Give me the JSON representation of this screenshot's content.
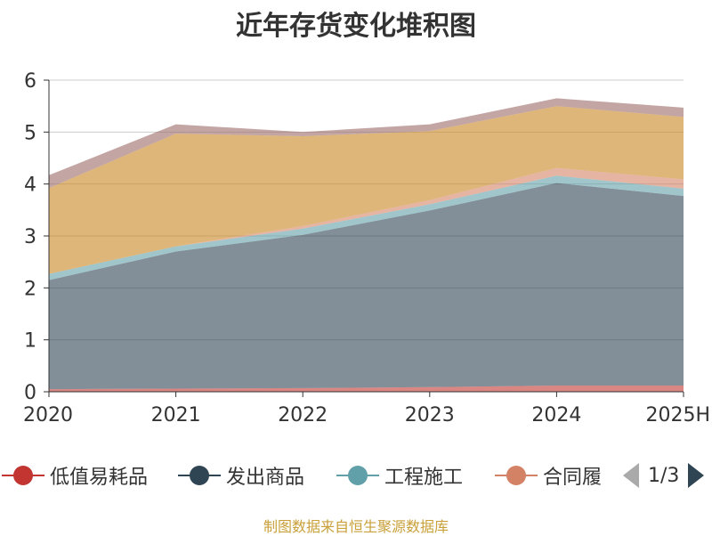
{
  "chart_data": {
    "type": "area",
    "stacked": true,
    "title": "近年存货变化堆积图",
    "categories": [
      "2020",
      "2021",
      "2022",
      "2023",
      "2024",
      "2025H"
    ],
    "ylim": [
      0,
      6
    ],
    "yticks": [
      "0",
      "1",
      "2",
      "3",
      "4",
      "5",
      "6"
    ],
    "grid": true,
    "series": [
      {
        "name": "低值易耗品",
        "color": "#c23531",
        "values": [
          0.05,
          0.06,
          0.07,
          0.09,
          0.12,
          0.12
        ]
      },
      {
        "name": "发出商品",
        "color": "#2f4554",
        "values": [
          2.1,
          2.64,
          2.95,
          3.4,
          3.9,
          3.65
        ]
      },
      {
        "name": "工程施工",
        "color": "#61a0a8",
        "values": [
          0.12,
          0.1,
          0.12,
          0.12,
          0.14,
          0.14
        ]
      },
      {
        "color": "#d48265",
        "values": [
          0.0,
          0.0,
          0.05,
          0.08,
          0.15,
          0.18
        ]
      },
      {
        "color": "#ca8622",
        "values": [
          1.65,
          2.17,
          1.73,
          1.33,
          1.19,
          1.2
        ]
      },
      {
        "color": "#9b6b67",
        "values": [
          0.25,
          0.18,
          0.08,
          0.13,
          0.15,
          0.18
        ]
      }
    ]
  },
  "legend": {
    "items": [
      "低值易耗品",
      "发出商品",
      "工程施工",
      "合同履"
    ],
    "colors": [
      "#c23531",
      "#2f4554",
      "#61a0a8",
      "#d48265"
    ],
    "page": "1/3"
  },
  "footer": {
    "source": "制图数据来自恒生聚源数据库"
  }
}
